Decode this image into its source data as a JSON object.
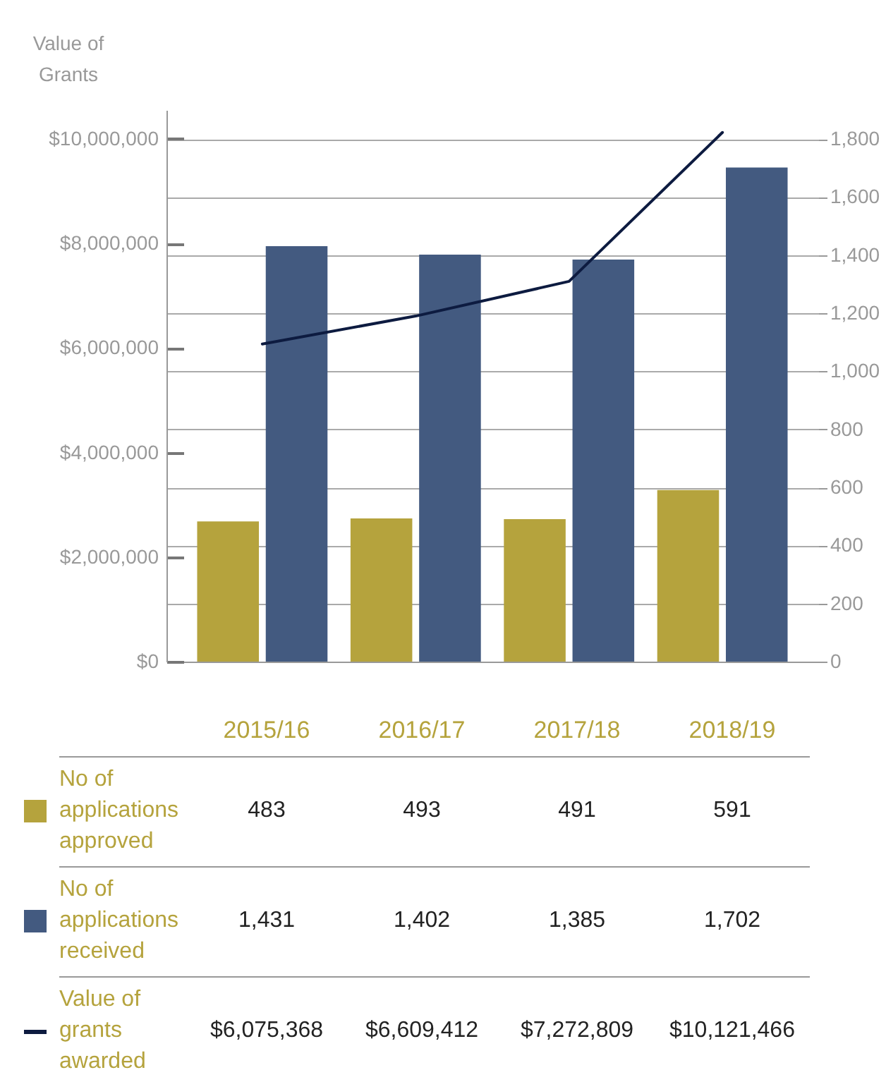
{
  "chart_data": {
    "type": "bar",
    "ylabel": "Value of Grants",
    "categories": [
      "2015/16",
      "2016/17",
      "2017/18",
      "2018/19"
    ],
    "series": [
      {
        "name": "No of applications approved",
        "color": "#b5a33d",
        "axis": "y2",
        "values": [
          483,
          493,
          491,
          591
        ],
        "value_labels": [
          "483",
          "493",
          "491",
          "591"
        ]
      },
      {
        "name": "No of applications received",
        "color": "#435a80",
        "axis": "y2",
        "values": [
          1431,
          1402,
          1385,
          1702
        ],
        "value_labels": [
          "1,431",
          "1,402",
          "1,385",
          "1,702"
        ]
      },
      {
        "name": "Value of grants awarded",
        "type": "line",
        "color": "#0d1b40",
        "axis": "y",
        "values": [
          6075368,
          6609412,
          7272809,
          10121466
        ],
        "value_labels": [
          "$6,075,368",
          "$6,609,412",
          "$7,272,809",
          "$10,121,466"
        ]
      }
    ],
    "ylim": [
      0,
      10550000
    ],
    "yticks": [
      {
        "value": 0,
        "label": "$0"
      },
      {
        "value": 2000000,
        "label": "$2,000,000"
      },
      {
        "value": 4000000,
        "label": "$4,000,000"
      },
      {
        "value": 6000000,
        "label": "$6,000,000"
      },
      {
        "value": 8000000,
        "label": "$8,000,000"
      },
      {
        "value": 10000000,
        "label": "$10,000,000"
      }
    ],
    "y2lim": [
      0,
      1900
    ],
    "y2ticks": [
      0,
      200,
      400,
      600,
      800,
      {
        "value": 1000,
        "label": "1,000"
      },
      {
        "value": 1200,
        "label": "1,200"
      },
      {
        "value": 1400,
        "label": "1,400"
      },
      {
        "value": 1600,
        "label": "1,600"
      },
      {
        "value": 1800,
        "label": "1,800"
      }
    ],
    "grid": true,
    "legend": "bottom"
  }
}
